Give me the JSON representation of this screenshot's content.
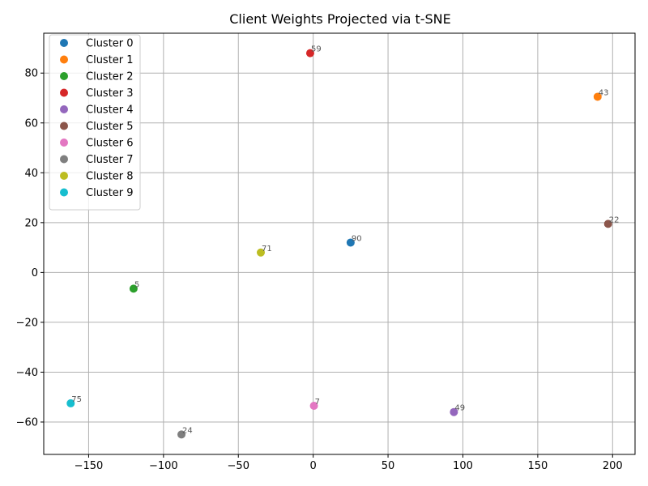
{
  "chart_data": {
    "type": "scatter",
    "title": "Client Weights Projected via t-SNE",
    "xlabel": "",
    "ylabel": "",
    "xlim": [
      -180,
      215
    ],
    "ylim": [
      -73,
      96
    ],
    "xticks": [
      -150,
      -100,
      -50,
      0,
      50,
      100,
      150,
      200
    ],
    "yticks": [
      -60,
      -40,
      -20,
      0,
      20,
      40,
      60,
      80
    ],
    "xtick_labels": [
      "−150",
      "−100",
      "−50",
      "0",
      "50",
      "100",
      "150",
      "200"
    ],
    "ytick_labels": [
      "−60",
      "−40",
      "−20",
      "0",
      "20",
      "40",
      "60",
      "80"
    ],
    "grid": true,
    "legend_position": "upper-left",
    "series": [
      {
        "name": "Cluster 0",
        "color": "#1f77b4",
        "points": [
          {
            "x": 25,
            "y": 12,
            "label": "90"
          }
        ]
      },
      {
        "name": "Cluster 1",
        "color": "#ff7f0e",
        "points": [
          {
            "x": 190,
            "y": 70.5,
            "label": "43"
          }
        ]
      },
      {
        "name": "Cluster 2",
        "color": "#2ca02c",
        "points": [
          {
            "x": -120,
            "y": -6.5,
            "label": "5"
          }
        ]
      },
      {
        "name": "Cluster 3",
        "color": "#d62728",
        "points": [
          {
            "x": -2,
            "y": 88,
            "label": "59"
          }
        ]
      },
      {
        "name": "Cluster 4",
        "color": "#9467bd",
        "points": [
          {
            "x": 94,
            "y": -56,
            "label": "49"
          }
        ]
      },
      {
        "name": "Cluster 5",
        "color": "#8c564b",
        "points": [
          {
            "x": 197,
            "y": 19.5,
            "label": "22"
          }
        ]
      },
      {
        "name": "Cluster 6",
        "color": "#e377c2",
        "points": [
          {
            "x": 0.5,
            "y": -53.5,
            "label": "7"
          }
        ]
      },
      {
        "name": "Cluster 7",
        "color": "#7f7f7f",
        "points": [
          {
            "x": -88,
            "y": -65,
            "label": "24"
          }
        ]
      },
      {
        "name": "Cluster 8",
        "color": "#bcbd22",
        "points": [
          {
            "x": -35,
            "y": 8,
            "label": "71"
          }
        ]
      },
      {
        "name": "Cluster 9",
        "color": "#17becf",
        "points": [
          {
            "x": -162,
            "y": -52.5,
            "label": "75"
          }
        ]
      }
    ]
  }
}
